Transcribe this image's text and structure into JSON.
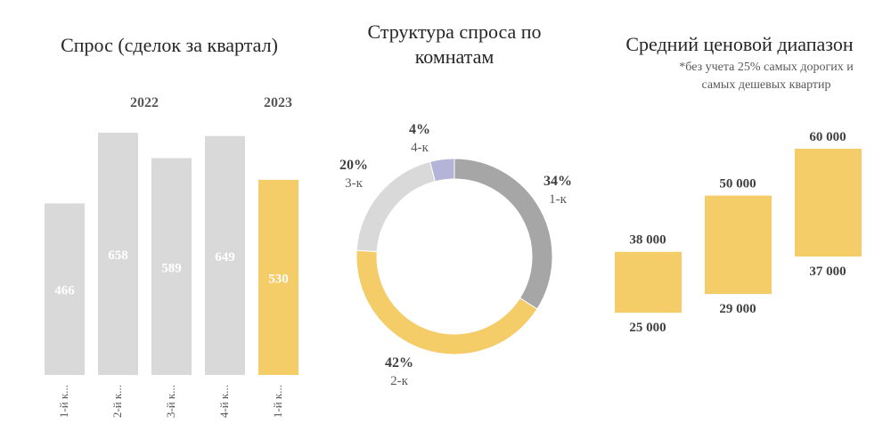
{
  "chart_data": [
    {
      "type": "bar",
      "title": "Спрос (сделок за квартал)",
      "group_labels": [
        "2022",
        "2023"
      ],
      "categories": [
        "1-й к...",
        "2-й к...",
        "3-й к...",
        "4-й к...",
        "1-й к..."
      ],
      "values": [
        466,
        658,
        589,
        649,
        530
      ],
      "colors": [
        "#d9d9d9",
        "#d9d9d9",
        "#d9d9d9",
        "#d9d9d9",
        "#f4cc68"
      ],
      "ylim": [
        0,
        660
      ]
    },
    {
      "type": "pie",
      "title": "Структура спроса по комнатам",
      "donut": true,
      "slices": [
        {
          "label": "1-к",
          "value": 34,
          "text": "34%",
          "color": "#a6a6a6"
        },
        {
          "label": "2-к",
          "value": 42,
          "text": "42%",
          "color": "#f4cc68"
        },
        {
          "label": "3-к",
          "value": 20,
          "text": "20%",
          "color": "#d9d9d9"
        },
        {
          "label": "4-к",
          "value": 4,
          "text": "4%",
          "color": "#b4b4d9"
        }
      ]
    },
    {
      "type": "bar",
      "subtype": "floating-range",
      "title": "Средний ценовой диапазон",
      "subtitle": "*без учета 25% самых дорогих и самых дешевых квартир",
      "ranges": [
        {
          "low": 25000,
          "high": 38000,
          "low_text": "25 000",
          "high_text": "38 000"
        },
        {
          "low": 29000,
          "high": 50000,
          "low_text": "29 000",
          "high_text": "50 000"
        },
        {
          "low": 37000,
          "high": 60000,
          "low_text": "37 000",
          "high_text": "60 000"
        }
      ],
      "color": "#f4cc68"
    }
  ]
}
